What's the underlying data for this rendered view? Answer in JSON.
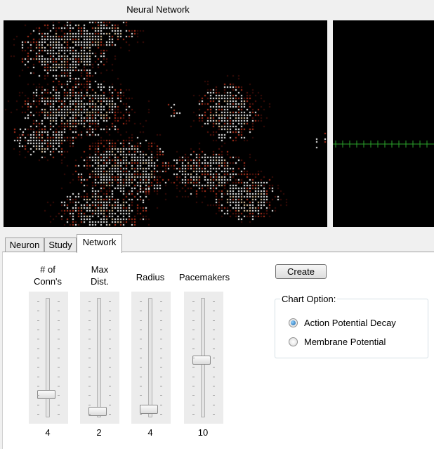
{
  "window": {
    "title": "Neural Network"
  },
  "tabs": [
    {
      "label": "Neuron",
      "active": false
    },
    {
      "label": "Study",
      "active": false
    },
    {
      "label": "Network",
      "active": true
    }
  ],
  "sliders": [
    {
      "label": "# of\nConn's",
      "value": "4",
      "level": 0.18
    },
    {
      "label": "Max\nDist.",
      "value": "2",
      "level": 0.03
    },
    {
      "label": "Radius",
      "value": "4",
      "level": 0.05
    },
    {
      "label": "Pacemakers",
      "value": "10",
      "level": 0.49
    }
  ],
  "create_button": {
    "label": "Create"
  },
  "chart_option": {
    "title": "Chart Option:",
    "options": [
      {
        "label": "Action Potential Decay",
        "checked": true
      },
      {
        "label": "Membrane Potential",
        "checked": false
      }
    ]
  },
  "colors": {
    "scope_trace": "#2aa02a",
    "neuron_active": "#ffffff",
    "neuron_decay": "#8b1a10"
  }
}
